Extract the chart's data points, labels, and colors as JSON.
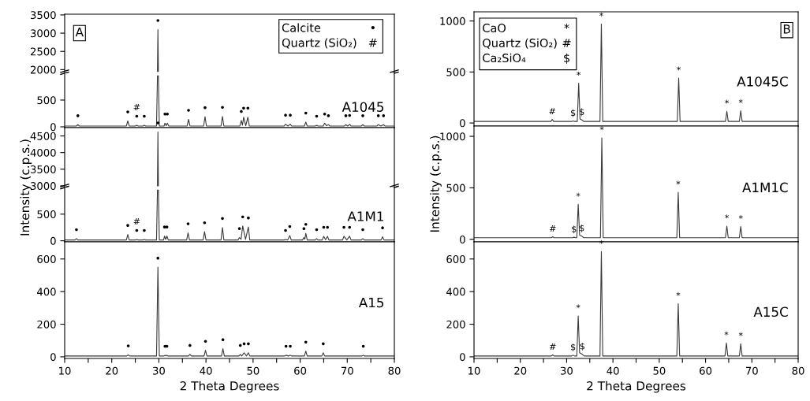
{
  "chart_data": [
    {
      "type": "line",
      "xlim": [
        10,
        80
      ],
      "ylim": [
        1900,
        3520
      ],
      "yticks": [
        2000,
        2500,
        3000,
        3500
      ],
      "tick_labels": "y",
      "series": [
        {
          "color": "#3a3a3a",
          "x": [
            29.7,
            29.8,
            29.9
          ],
          "values": [
            1950,
            3100,
            1950
          ]
        }
      ],
      "annotations": [
        "A",
        "Calcite",
        "•",
        "Quartz (SiO₂)",
        "#",
        {
          "text": "•",
          "x": 29.8,
          "y": 3100
        }
      ]
    },
    {
      "type": "line",
      "xlim": [
        10,
        80
      ],
      "ylim": [
        -15,
        1000
      ],
      "yticks": [
        0,
        500
      ],
      "tick_labels": "y",
      "series": [
        {
          "color": "#3a3a3a",
          "x": [
            10,
            12.5,
            12.8,
            13.1,
            23.1,
            23.4,
            23.7,
            25.0,
            25.3,
            25.6,
            26.6,
            26.9,
            27.2,
            29.5,
            29.7,
            29.8,
            29.9,
            30.1,
            31.1,
            31.3,
            31.55,
            31.8,
            32.1,
            36.0,
            36.3,
            36.6,
            39.5,
            39.8,
            40.1,
            43.2,
            43.5,
            43.8,
            47.2,
            47.5,
            47.75,
            48.0,
            48.45,
            48.9,
            49.2,
            56.6,
            56.9,
            57.4,
            57.9,
            58.2,
            60.9,
            61.2,
            61.5,
            63.2,
            63.5,
            63.8,
            64.9,
            65.2,
            65.6,
            66.0,
            66.3,
            69.4,
            69.7,
            70.1,
            70.5,
            70.8,
            73.0,
            73.3,
            73.6,
            76.3,
            76.6,
            77.15,
            77.7,
            78.0,
            80
          ],
          "values": [
            15,
            15,
            40,
            15,
            15,
            110,
            15,
            15,
            30,
            15,
            15,
            30,
            15,
            15,
            950,
            null,
            950,
            15,
            15,
            70,
            20,
            70,
            15,
            15,
            140,
            15,
            15,
            190,
            15,
            15,
            195,
            15,
            15,
            120,
            30,
            180,
            20,
            180,
            15,
            15,
            50,
            15,
            50,
            15,
            15,
            90,
            15,
            15,
            30,
            15,
            15,
            70,
            20,
            40,
            15,
            15,
            40,
            15,
            45,
            15,
            15,
            40,
            15,
            15,
            40,
            15,
            40,
            15,
            15
          ]
        }
      ],
      "annotations": [
        "A1045",
        {
          "text": "•",
          "x": 12.8,
          "y": 40
        },
        {
          "text": "•",
          "x": 23.4,
          "y": 110
        },
        {
          "text": "•",
          "x": 25.3,
          "y": 30
        },
        {
          "text": "#",
          "x": 25.3,
          "y": 30
        },
        {
          "text": "•",
          "x": 26.9,
          "y": 30
        },
        {
          "text": "•",
          "x": 31.3,
          "y": 70
        },
        {
          "text": "•",
          "x": 31.8,
          "y": 70
        },
        {
          "text": "•",
          "x": 36.3,
          "y": 140
        },
        {
          "text": "•",
          "x": 39.8,
          "y": 190
        },
        {
          "text": "•",
          "x": 43.5,
          "y": 195
        },
        {
          "text": "•",
          "x": 47.5,
          "y": 120
        },
        {
          "text": "•",
          "x": 48.0,
          "y": 180
        },
        {
          "text": "•",
          "x": 48.9,
          "y": 180
        },
        {
          "text": "•",
          "x": 56.9,
          "y": 50
        },
        {
          "text": "•",
          "x": 57.9,
          "y": 50
        },
        {
          "text": "•",
          "x": 61.2,
          "y": 90
        },
        {
          "text": "•",
          "x": 63.5,
          "y": 30
        },
        {
          "text": "•",
          "x": 65.2,
          "y": 70
        },
        {
          "text": "•",
          "x": 66.0,
          "y": 40
        },
        {
          "text": "•",
          "x": 69.7,
          "y": 40
        },
        {
          "text": "•",
          "x": 70.5,
          "y": 45
        },
        {
          "text": "•",
          "x": 73.3,
          "y": 40
        },
        {
          "text": "•",
          "x": 76.6,
          "y": 40
        },
        {
          "text": "•",
          "x": 77.7,
          "y": 40
        }
      ]
    },
    {
      "type": "line",
      "xlim": [
        10,
        80
      ],
      "ylim": [
        2950,
        4750
      ],
      "yticks": [
        3000,
        3500,
        4000,
        4500
      ],
      "tick_labels": "y",
      "ylabel": "Intensity (c.p.s.)",
      "series": [
        {
          "color": "#3a3a3a",
          "x": [
            29.7,
            29.8,
            29.9
          ],
          "values": [
            3000,
            4620,
            3000
          ]
        }
      ],
      "annotations": [
        {
          "text": "•",
          "x": 29.8,
          "y": 4620
        }
      ]
    },
    {
      "type": "line",
      "xlim": [
        10,
        80
      ],
      "ylim": [
        -20,
        1000
      ],
      "yticks": [
        0,
        500
      ],
      "tick_labels": "y",
      "series": [
        {
          "color": "#3a3a3a",
          "x": [
            10,
            12.2,
            12.5,
            12.8,
            23.1,
            23.4,
            23.7,
            25.0,
            25.3,
            25.6,
            26.6,
            26.9,
            27.2,
            29.5,
            29.7,
            29.8,
            29.9,
            30.1,
            31.0,
            31.2,
            31.45,
            31.7,
            32.0,
            35.9,
            36.2,
            36.5,
            39.4,
            39.7,
            40.0,
            43.2,
            43.5,
            43.8,
            46.8,
            47.1,
            47.45,
            47.8,
            48.4,
            49.0,
            49.3,
            56.6,
            56.9,
            57.35,
            57.8,
            58.1,
            60.5,
            60.8,
            61.0,
            61.2,
            61.5,
            63.2,
            63.5,
            63.8,
            64.7,
            65.0,
            65.4,
            65.8,
            66.1,
            69.0,
            69.3,
            69.9,
            70.5,
            70.8,
            73.0,
            73.3,
            73.6,
            77.2,
            77.5,
            77.8,
            80
          ],
          "values": [
            15,
            15,
            40,
            15,
            15,
            120,
            15,
            15,
            25,
            15,
            15,
            25,
            15,
            15,
            950,
            null,
            950,
            15,
            15,
            90,
            25,
            90,
            15,
            15,
            150,
            15,
            15,
            170,
            15,
            15,
            250,
            15,
            15,
            60,
            30,
            280,
            25,
            260,
            15,
            15,
            25,
            15,
            100,
            15,
            15,
            60,
            30,
            140,
            15,
            15,
            40,
            15,
            15,
            85,
            20,
            85,
            15,
            15,
            85,
            15,
            85,
            15,
            15,
            40,
            15,
            15,
            75,
            15,
            15
          ]
        }
      ],
      "annotations": [
        "A1M1",
        {
          "text": "•",
          "x": 12.5,
          "y": 40
        },
        {
          "text": "•",
          "x": 23.4,
          "y": 120
        },
        {
          "text": "•",
          "x": 25.3,
          "y": 25
        },
        {
          "text": "#",
          "x": 25.3,
          "y": 25
        },
        {
          "text": "•",
          "x": 26.9,
          "y": 25
        },
        {
          "text": "•",
          "x": 31.2,
          "y": 90
        },
        {
          "text": "•",
          "x": 31.7,
          "y": 90
        },
        {
          "text": "•",
          "x": 36.2,
          "y": 150
        },
        {
          "text": "•",
          "x": 39.7,
          "y": 170
        },
        {
          "text": "•",
          "x": 43.5,
          "y": 250
        },
        {
          "text": "•",
          "x": 47.1,
          "y": 60
        },
        {
          "text": "•",
          "x": 47.8,
          "y": 280
        },
        {
          "text": "•",
          "x": 49.0,
          "y": 260
        },
        {
          "text": "•",
          "x": 56.9,
          "y": 25
        },
        {
          "text": "•",
          "x": 57.8,
          "y": 100
        },
        {
          "text": "•",
          "x": 60.8,
          "y": 60
        },
        {
          "text": "•",
          "x": 61.2,
          "y": 140
        },
        {
          "text": "•",
          "x": 63.5,
          "y": 40
        },
        {
          "text": "•",
          "x": 65.0,
          "y": 85
        },
        {
          "text": "•",
          "x": 65.8,
          "y": 85
        },
        {
          "text": "•",
          "x": 69.3,
          "y": 85
        },
        {
          "text": "•",
          "x": 70.5,
          "y": 85
        },
        {
          "text": "•",
          "x": 73.3,
          "y": 40
        },
        {
          "text": "•",
          "x": 77.5,
          "y": 75
        }
      ]
    },
    {
      "type": "line",
      "xlim": [
        10,
        80
      ],
      "ylim": [
        -10,
        705
      ],
      "yticks": [
        0,
        200,
        400,
        600
      ],
      "xlabel": "2 Theta Degrees",
      "xticks": [
        10,
        {
          "value": 15,
          "label": null
        },
        20,
        {
          "value": 25,
          "label": null
        },
        30,
        {
          "value": 35,
          "label": null
        },
        40,
        {
          "value": 45,
          "label": null
        },
        50,
        {
          "value": 55,
          "label": null
        },
        60,
        {
          "value": 65,
          "label": null
        },
        70,
        {
          "value": 75,
          "label": null
        },
        80
      ],
      "series": [
        {
          "color": "#3a3a3a",
          "x": [
            10,
            23.2,
            23.5,
            23.8,
            29.5,
            29.8,
            30.1,
            31.1,
            31.3,
            31.5,
            31.7,
            31.9,
            36.3,
            36.6,
            36.9,
            39.6,
            39.9,
            40.2,
            43.3,
            43.6,
            43.9,
            47.0,
            47.3,
            47.6,
            48.1,
            48.6,
            49.0,
            49.3,
            56.7,
            57.0,
            57.5,
            57.9,
            58.2,
            60.9,
            61.2,
            61.5,
            64.6,
            64.9,
            65.2,
            73.1,
            73.4,
            73.7,
            80
          ],
          "values": [
            5,
            5,
            12,
            5,
            5,
            550,
            5,
            5,
            10,
            5,
            10,
            5,
            5,
            15,
            5,
            5,
            40,
            5,
            5,
            50,
            5,
            5,
            15,
            5,
            25,
            5,
            25,
            5,
            5,
            10,
            5,
            10,
            5,
            5,
            35,
            5,
            5,
            25,
            5,
            5,
            10,
            5,
            5
          ]
        }
      ],
      "annotations": [
        "A15",
        {
          "text": "•",
          "x": 23.5,
          "y": 12
        },
        {
          "text": "•",
          "x": 29.8,
          "y": 550
        },
        {
          "text": "•",
          "x": 31.3,
          "y": 10
        },
        {
          "text": "•",
          "x": 31.7,
          "y": 10
        },
        {
          "text": "•",
          "x": 36.6,
          "y": 15
        },
        {
          "text": "•",
          "x": 39.9,
          "y": 40
        },
        {
          "text": "•",
          "x": 43.6,
          "y": 50
        },
        {
          "text": "•",
          "x": 47.3,
          "y": 15
        },
        {
          "text": "•",
          "x": 48.1,
          "y": 25
        },
        {
          "text": "•",
          "x": 49.0,
          "y": 25
        },
        {
          "text": "•",
          "x": 57.0,
          "y": 10
        },
        {
          "text": "•",
          "x": 57.9,
          "y": 10
        },
        {
          "text": "•",
          "x": 61.2,
          "y": 35
        },
        {
          "text": "•",
          "x": 64.9,
          "y": 25
        },
        {
          "text": "•",
          "x": 73.4,
          "y": 10
        }
      ]
    },
    {
      "type": "line",
      "xlim": [
        10,
        80
      ],
      "ylim": [
        -30,
        1090
      ],
      "yticks": [
        0,
        500,
        1000
      ],
      "tick_labels": "y",
      "series": [
        {
          "color": "#3a3a3a",
          "x": [
            10,
            26.6,
            26.9,
            27.2,
            31.1,
            31.4,
            31.7,
            32.3,
            32.6,
            32.9,
            33.3,
            33.7,
            37.2,
            37.5,
            37.8,
            53.9,
            54.2,
            54.5,
            64.3,
            64.6,
            64.9,
            67.3,
            67.6,
            67.9,
            80
          ],
          "values": [
            15,
            15,
            35,
            15,
            15,
            20,
            15,
            15,
            390,
            40,
            30,
            15,
            15,
            970,
            15,
            15,
            440,
            15,
            15,
            115,
            15,
            15,
            120,
            15,
            15
          ]
        }
      ],
      "annotations": [
        "B",
        "CaO",
        "*",
        "Quartz (SiO₂)",
        "#",
        "Ca₂SiO₄",
        "$",
        "A1045C",
        {
          "text": "#",
          "x": 26.9,
          "y": 35
        },
        {
          "text": "$",
          "x": 31.4,
          "y": 20
        },
        {
          "text": "$",
          "x": 33.3,
          "y": 30
        },
        {
          "text": "*",
          "x": 32.6,
          "y": 390
        },
        {
          "text": "*",
          "x": 37.5,
          "y": 970
        },
        {
          "text": "*",
          "x": 54.2,
          "y": 440
        },
        {
          "text": "*",
          "x": 64.6,
          "y": 115
        },
        {
          "text": "*",
          "x": 67.6,
          "y": 120
        }
      ]
    },
    {
      "type": "line",
      "xlim": [
        10,
        80
      ],
      "ylim": [
        -25,
        1100
      ],
      "yticks": [
        0,
        500,
        1000
      ],
      "tick_labels": "y",
      "ylabel": "Intensity (c.p.s.)",
      "series": [
        {
          "color": "#3a3a3a",
          "x": [
            10,
            26.7,
            27.0,
            27.3,
            31.3,
            31.6,
            31.9,
            32.2,
            32.5,
            32.8,
            33.3,
            33.7,
            37.3,
            37.6,
            37.9,
            53.8,
            54.1,
            54.4,
            64.3,
            64.6,
            64.9,
            67.3,
            67.6,
            67.9,
            80
          ],
          "values": [
            15,
            15,
            25,
            15,
            15,
            20,
            15,
            15,
            340,
            40,
            30,
            15,
            15,
            985,
            15,
            15,
            456,
            15,
            15,
            128,
            15,
            15,
            123,
            15,
            15
          ]
        }
      ],
      "annotations": [
        "A1M1C",
        {
          "text": "#",
          "x": 27.0,
          "y": 25
        },
        {
          "text": "$",
          "x": 31.6,
          "y": 20
        },
        {
          "text": "$",
          "x": 33.3,
          "y": 30
        },
        {
          "text": "*",
          "x": 32.5,
          "y": 340
        },
        {
          "text": "*",
          "x": 37.6,
          "y": 985
        },
        {
          "text": "*",
          "x": 54.1,
          "y": 456
        },
        {
          "text": "*",
          "x": 64.6,
          "y": 128
        },
        {
          "text": "*",
          "x": 67.6,
          "y": 123
        }
      ]
    },
    {
      "type": "line",
      "xlim": [
        10,
        80
      ],
      "ylim": [
        -10,
        705
      ],
      "yticks": [
        0,
        200,
        400,
        600
      ],
      "xlabel": "2 Theta Degrees",
      "xticks": [
        10,
        {
          "value": 15,
          "label": null
        },
        20,
        {
          "value": 25,
          "label": null
        },
        30,
        {
          "value": 35,
          "label": null
        },
        40,
        {
          "value": 45,
          "label": null
        },
        50,
        {
          "value": 55,
          "label": null
        },
        60,
        {
          "value": 65,
          "label": null
        },
        70,
        {
          "value": 75,
          "label": null
        },
        80
      ],
      "series": [
        {
          "color": "#3a3a3a",
          "x": [
            10,
            26.7,
            27.0,
            27.3,
            31.1,
            31.4,
            31.7,
            32.2,
            32.5,
            32.8,
            33.4,
            33.8,
            37.2,
            37.5,
            37.8,
            53.8,
            54.1,
            54.4,
            64.2,
            64.5,
            64.8,
            67.3,
            67.6,
            67.9,
            80
          ],
          "values": [
            5,
            5,
            12,
            5,
            5,
            10,
            5,
            5,
            251,
            25,
            15,
            5,
            5,
            645,
            5,
            5,
            326,
            5,
            5,
            85,
            5,
            5,
            80,
            5,
            5
          ]
        }
      ],
      "annotations": [
        "A15C",
        {
          "text": "#",
          "x": 27.0,
          "y": 12
        },
        {
          "text": "$",
          "x": 31.4,
          "y": 10
        },
        {
          "text": "$",
          "x": 33.4,
          "y": 15
        },
        {
          "text": "*",
          "x": 32.5,
          "y": 251
        },
        {
          "text": "*",
          "x": 37.5,
          "y": 645
        },
        {
          "text": "*",
          "x": 54.1,
          "y": 326
        },
        {
          "text": "*",
          "x": 64.5,
          "y": 85
        },
        {
          "text": "*",
          "x": 67.6,
          "y": 80
        }
      ]
    }
  ]
}
